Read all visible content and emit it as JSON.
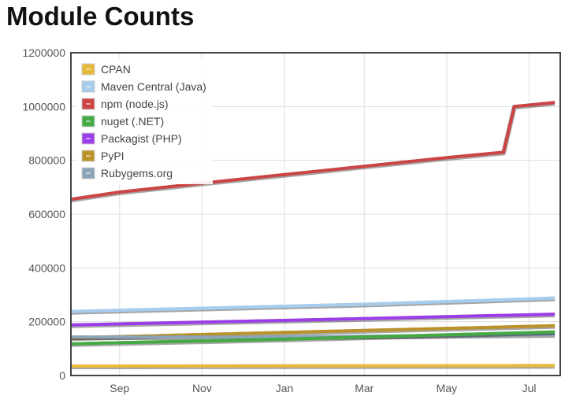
{
  "title": "Module Counts",
  "chart_data": {
    "type": "line",
    "title": "Module Counts",
    "xlabel": "",
    "ylabel": "",
    "x_ticks": [
      "Sep",
      "Nov",
      "Jan",
      "Mar",
      "May",
      "Jul"
    ],
    "ylim": [
      0,
      1200000
    ],
    "y_ticks": [
      "0",
      "200000",
      "400000",
      "600000",
      "800000",
      "1000000",
      "1200000"
    ],
    "grid": true,
    "legend_position": "top-left",
    "series": [
      {
        "name": "CPAN",
        "color": "#e8b93a",
        "points": [
          [
            "2017-07-27",
            35000
          ],
          [
            "2018-07-20",
            37000
          ]
        ]
      },
      {
        "name": "Maven Central (Java)",
        "color": "#a6cdee",
        "points": [
          [
            "2017-07-27",
            238000
          ],
          [
            "2017-11-01",
            250000
          ],
          [
            "2018-03-01",
            265000
          ],
          [
            "2018-07-20",
            288000
          ]
        ]
      },
      {
        "name": "npm (node.js)",
        "color": "#cc4444",
        "points": [
          [
            "2017-07-27",
            655000
          ],
          [
            "2017-09-01",
            682000
          ],
          [
            "2017-11-01",
            715000
          ],
          [
            "2018-01-01",
            747000
          ],
          [
            "2018-03-01",
            778000
          ],
          [
            "2018-05-01",
            810000
          ],
          [
            "2018-06-12",
            830000
          ],
          [
            "2018-06-20",
            1000000
          ],
          [
            "2018-07-20",
            1015000
          ]
        ]
      },
      {
        "name": "nuget (.NET)",
        "color": "#44aa44",
        "points": [
          [
            "2017-07-27",
            118000
          ],
          [
            "2018-01-01",
            135000
          ],
          [
            "2018-07-20",
            162000
          ]
        ]
      },
      {
        "name": "Packagist (PHP)",
        "color": "#9b3de8",
        "points": [
          [
            "2017-07-27",
            188000
          ],
          [
            "2018-01-01",
            205000
          ],
          [
            "2018-07-20",
            228000
          ]
        ]
      },
      {
        "name": "PyPI",
        "color": "#bb9229",
        "points": [
          [
            "2017-07-27",
            140000
          ],
          [
            "2018-01-01",
            160000
          ],
          [
            "2018-07-20",
            185000
          ]
        ]
      },
      {
        "name": "Rubygems.org",
        "color": "#8ca4b8",
        "points": [
          [
            "2017-07-27",
            143000
          ],
          [
            "2018-01-01",
            143000
          ],
          [
            "2018-07-20",
            152000
          ]
        ]
      }
    ]
  }
}
